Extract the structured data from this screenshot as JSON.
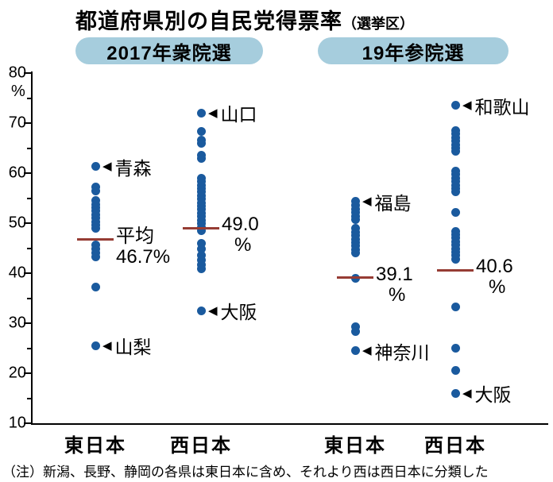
{
  "header": {
    "title": "都道府県別の自民党得票率",
    "suffix": "（選挙区）"
  },
  "note": "（注）新潟、長野、静岡の各県は東日本に含め、それより西は西日本に分類した",
  "colors": {
    "dot": "#1a5a9e",
    "mean_line": "#963c34",
    "panel_pill": "#a6cddd",
    "axis": "#000000"
  },
  "chart_data": {
    "type": "scatter",
    "variant": "strip-dot-plot",
    "title": "都道府県別の自民党得票率（選挙区）",
    "ylabel": "%",
    "ylim": [
      10,
      80
    ],
    "yticks": [
      80,
      70,
      60,
      50,
      40,
      30,
      20,
      10
    ],
    "minor_tick_step": 5,
    "grid": false,
    "panels": [
      {
        "label": "2017年衆院選",
        "groups": [
          {
            "label": "東日本",
            "mean": 46.7,
            "mean_label_lines": [
              "平均",
              "46.7%"
            ],
            "values": [
              61.3,
              57.3,
              56.4,
              54.6,
              53.8,
              53.1,
              52.4,
              51.7,
              51.0,
              50.3,
              49.6,
              48.9,
              45.6,
              44.8,
              44.0,
              43.2,
              37.3,
              25.5
            ],
            "annotations": [
              {
                "text": "青森",
                "value": 61.3
              },
              {
                "text": "山梨",
                "value": 25.5
              }
            ]
          },
          {
            "label": "西日本",
            "mean": 49.0,
            "mean_label_lines": [
              "49.0",
              "%"
            ],
            "values": [
              72.0,
              68.3,
              66.6,
              65.9,
              63.6,
              62.9,
              59.0,
              58.3,
              57.6,
              56.9,
              56.2,
              55.5,
              54.8,
              54.1,
              53.4,
              52.7,
              52.0,
              51.3,
              50.6,
              49.9,
              49.2,
              48.5,
              46.0,
              44.8,
              43.6,
              42.6,
              41.6,
              40.8,
              32.5
            ],
            "annotations": [
              {
                "text": "山口",
                "value": 72.0
              },
              {
                "text": "大阪",
                "value": 32.5
              }
            ]
          }
        ]
      },
      {
        "label": "19年参院選",
        "groups": [
          {
            "label": "東日本",
            "mean": 39.1,
            "mean_label_lines": [
              "39.1",
              "%"
            ],
            "values": [
              54.3,
              53.5,
              52.8,
              52.1,
              51.4,
              50.7,
              48.9,
              48.2,
              47.5,
              46.8,
              46.1,
              45.4,
              44.7,
              44.0,
              39.0,
              29.3,
              28.4,
              24.5
            ],
            "annotations": [
              {
                "text": "福島",
                "value": 54.3
              },
              {
                "text": "神奈川",
                "value": 24.5
              }
            ]
          },
          {
            "label": "西日本",
            "mean": 40.6,
            "mean_label_lines": [
              "40.6",
              "%"
            ],
            "values": [
              73.5,
              68.5,
              67.8,
              67.1,
              66.4,
              65.7,
              65.0,
              64.3,
              60.4,
              59.7,
              59.0,
              58.3,
              57.6,
              56.9,
              56.2,
              52.1,
              48.4,
              47.7,
              47.0,
              46.3,
              45.6,
              44.9,
              44.2,
              43.5,
              42.8,
              33.2,
              25.0,
              20.5,
              16.0
            ],
            "annotations": [
              {
                "text": "和歌山",
                "value": 73.5
              },
              {
                "text": "大阪",
                "value": 16.0
              }
            ]
          }
        ]
      }
    ]
  }
}
